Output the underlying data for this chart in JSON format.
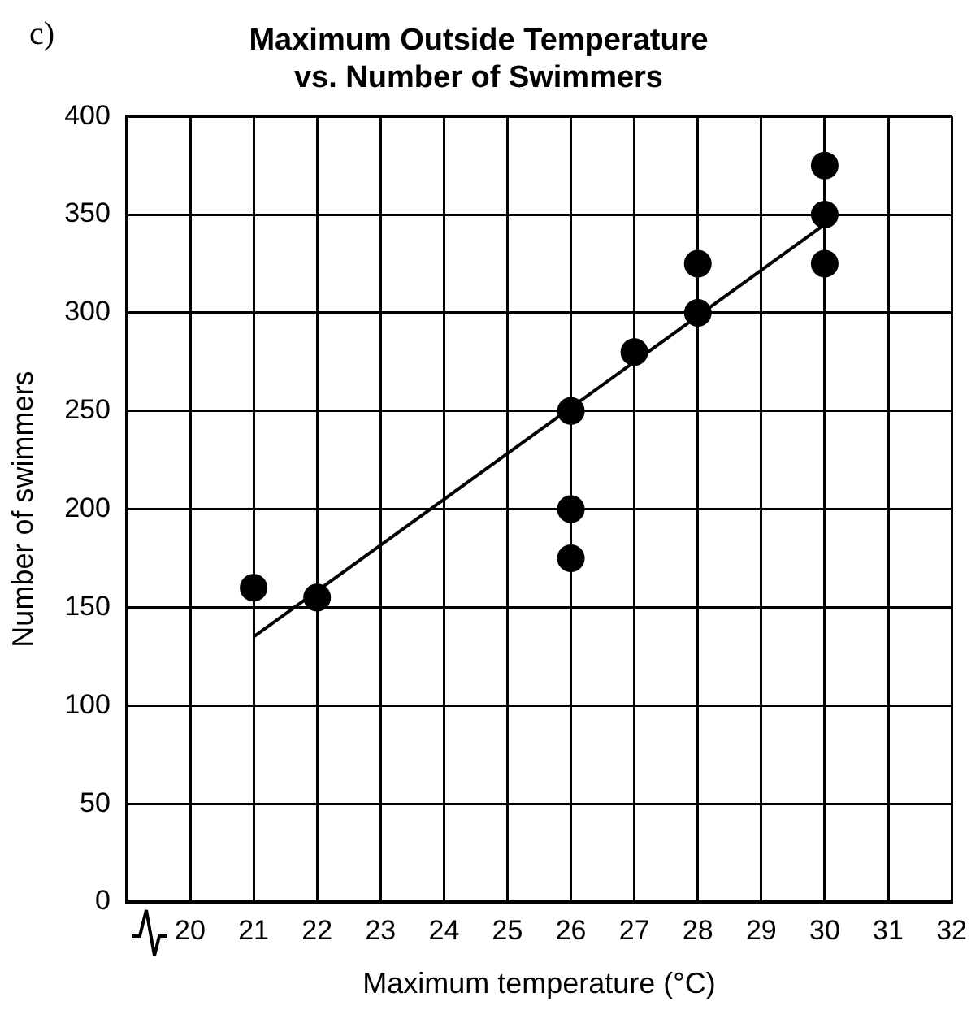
{
  "chart_data": {
    "type": "scatter",
    "title": [
      "Maximum Outside Temperature",
      "vs. Number of Swimmers"
    ],
    "xlabel": "Maximum temperature (°C)",
    "ylabel": "Number of swimmers",
    "annotations": [
      "c)"
    ],
    "series": [
      {
        "marker": "circle",
        "color": "#000000",
        "x": [
          21,
          22,
          26,
          26,
          26,
          27,
          28,
          28,
          30,
          30,
          30
        ],
        "values": [
          160,
          155,
          250,
          200,
          175,
          280,
          325,
          300,
          375,
          350,
          325
        ]
      },
      {
        "type": "line",
        "marker": "none",
        "color": "#000000",
        "x": [
          21,
          30
        ],
        "values": [
          135,
          345
        ]
      }
    ],
    "xlim": [
      19,
      32
    ],
    "xticks": [
      20,
      21,
      22,
      23,
      24,
      25,
      26,
      27,
      28,
      29,
      30,
      31,
      32
    ],
    "ylim": [
      0,
      400
    ],
    "yticks": [
      0,
      50,
      100,
      150,
      200,
      250,
      300,
      350,
      400
    ],
    "grid": true,
    "legend": false
  }
}
